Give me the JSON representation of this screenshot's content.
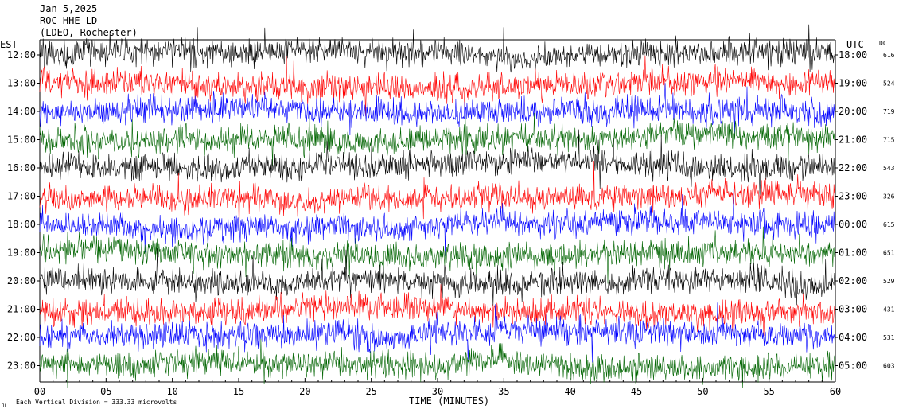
{
  "header": {
    "date": "Jan 5,2025",
    "station": "ROC HHE LD --",
    "location": "(LDEO, Rochester)"
  },
  "chart_data": {
    "type": "line",
    "title": "",
    "xlabel": "TIME (MINUTES)",
    "xlim": [
      0,
      60
    ],
    "x_ticks": [
      "00",
      "05",
      "10",
      "15",
      "20",
      "25",
      "30",
      "35",
      "40",
      "45",
      "50",
      "55",
      "60"
    ],
    "left_axis_label": "EST",
    "right_axis_label": "UTC",
    "dc_label": "DC",
    "rows": [
      {
        "est": "12:00",
        "utc": "18:00",
        "dc": "616",
        "color": "#000000"
      },
      {
        "est": "13:00",
        "utc": "19:00",
        "dc": "524",
        "color": "#ff0000"
      },
      {
        "est": "14:00",
        "utc": "20:00",
        "dc": "719",
        "color": "#0000ff"
      },
      {
        "est": "15:00",
        "utc": "21:00",
        "dc": "715",
        "color": "#006400"
      },
      {
        "est": "16:00",
        "utc": "22:00",
        "dc": "543",
        "color": "#000000"
      },
      {
        "est": "17:00",
        "utc": "23:00",
        "dc": "326",
        "color": "#ff0000"
      },
      {
        "est": "18:00",
        "utc": "00:00",
        "dc": "615",
        "color": "#0000ff"
      },
      {
        "est": "19:00",
        "utc": "01:00",
        "dc": "651",
        "color": "#006400"
      },
      {
        "est": "20:00",
        "utc": "02:00",
        "dc": "529",
        "color": "#000000"
      },
      {
        "est": "21:00",
        "utc": "03:00",
        "dc": "431",
        "color": "#ff0000"
      },
      {
        "est": "22:00",
        "utc": "04:00",
        "dc": "531",
        "color": "#0000ff"
      },
      {
        "est": "23:00",
        "utc": "05:00",
        "dc": "603",
        "color": "#006400"
      }
    ],
    "scale_note": "Each Vertical Division =  333.33 microvolts",
    "corner_mark": "JL"
  }
}
